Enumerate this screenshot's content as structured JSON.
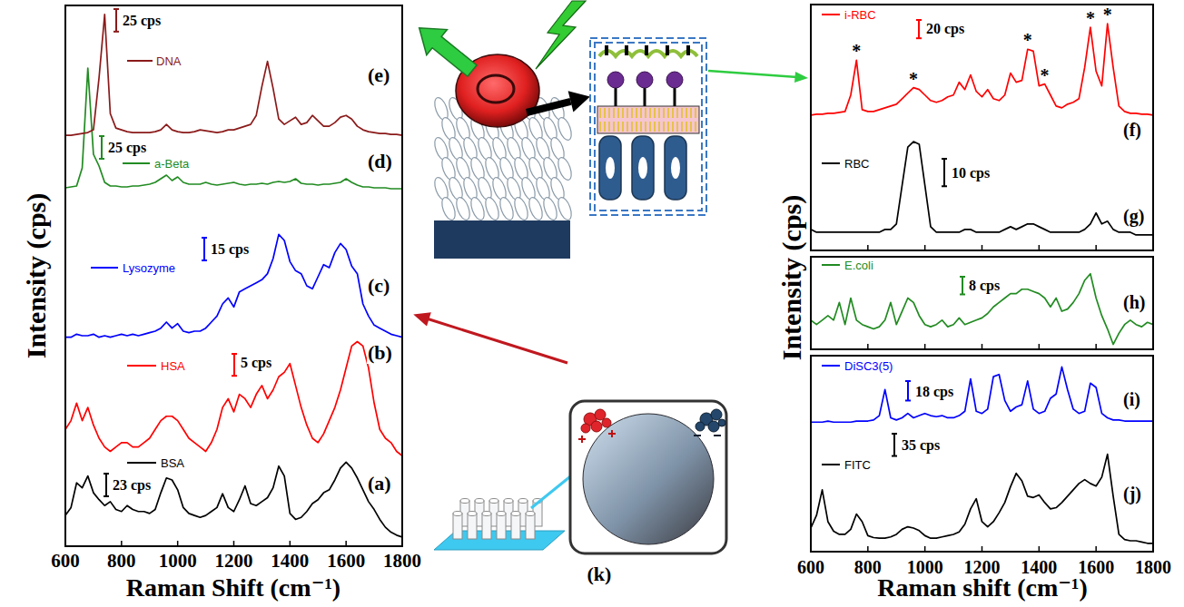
{
  "chart_data": [
    {
      "type": "line",
      "x_label": "Raman Shift (cm⁻¹)",
      "y_label": "Intensity (cps)",
      "xlim": [
        600,
        1800
      ],
      "xticks": [
        600,
        800,
        1000,
        1200,
        1400,
        1600,
        1800
      ],
      "tick_labels": "x",
      "x": [
        600,
        620,
        640,
        660,
        680,
        700,
        720,
        740,
        760,
        780,
        800,
        820,
        840,
        860,
        880,
        900,
        920,
        940,
        960,
        980,
        1000,
        1020,
        1040,
        1060,
        1080,
        1100,
        1120,
        1140,
        1160,
        1180,
        1200,
        1220,
        1240,
        1260,
        1280,
        1300,
        1320,
        1340,
        1360,
        1380,
        1400,
        1420,
        1440,
        1460,
        1480,
        1500,
        1520,
        1540,
        1560,
        1580,
        1600,
        1620,
        1640,
        1660,
        1680,
        1700,
        1720,
        1740,
        1760,
        1780,
        1800
      ],
      "panels": [
        {
          "series": [
            {
              "name": "BSA",
              "label": "(a)",
              "color": "#000000",
              "ylim": [
                0,
                92
              ],
              "scale_bar": {
                "value": 23,
                "label": "23 cps"
              },
              "values": [
                22,
                30,
                55,
                50,
                62,
                45,
                38,
                32,
                36,
                28,
                26,
                32,
                28,
                26,
                26,
                24,
                28,
                45,
                60,
                58,
                48,
                30,
                24,
                22,
                20,
                22,
                26,
                30,
                44,
                30,
                26,
                38,
                52,
                34,
                32,
                36,
                40,
                50,
                72,
                62,
                24,
                18,
                20,
                26,
                34,
                38,
                45,
                48,
                58,
                70,
                76,
                70,
                60,
                48,
                36,
                28,
                18,
                10,
                5,
                2,
                0
              ]
            },
            {
              "name": "HSA",
              "label": "(b)",
              "color": "#ff0000",
              "ylim": [
                0,
                31
              ],
              "scale_bar": {
                "value": 5,
                "label": "5 cps"
              },
              "values": [
                8,
                10,
                14,
                10,
                13,
                9,
                6,
                4,
                3,
                4,
                5,
                5,
                4,
                4,
                5,
                6,
                8,
                10,
                11,
                11,
                10,
                8,
                6,
                5,
                4,
                3,
                5,
                8,
                13,
                15,
                12,
                16,
                15,
                13,
                16,
                18,
                15,
                17,
                20,
                21,
                23,
                18,
                13,
                9,
                6,
                5,
                7,
                10,
                13,
                17,
                22,
                27,
                28,
                27,
                22,
                14,
                8,
                6,
                5,
                3,
                2
              ]
            },
            {
              "name": "Lysozyme",
              "label": "(c)",
              "color": "#0000ff",
              "ylim": [
                0,
                90
              ],
              "scale_bar": {
                "value": 15,
                "label": "15 cps"
              },
              "values": [
                8,
                8,
                10,
                9,
                9,
                10,
                8,
                9,
                8,
                9,
                10,
                9,
                10,
                9,
                10,
                11,
                12,
                14,
                18,
                14,
                17,
                12,
                11,
                12,
                12,
                14,
                18,
                22,
                30,
                34,
                28,
                38,
                40,
                42,
                44,
                46,
                50,
                60,
                76,
                72,
                58,
                52,
                50,
                42,
                40,
                48,
                56,
                54,
                64,
                70,
                66,
                55,
                50,
                30,
                22,
                16,
                14,
                12,
                10,
                9,
                8
              ]
            },
            {
              "name": "a-Beta",
              "label": "(d)",
              "color": "#228b22",
              "ylim": [
                0,
                150
              ],
              "scale_bar": {
                "value": 25,
                "label": "25 cps"
              },
              "values": [
                8,
                9,
                10,
                30,
                140,
                45,
                32,
                14,
                10,
                10,
                9,
                9,
                10,
                10,
                11,
                12,
                14,
                18,
                22,
                16,
                20,
                14,
                12,
                12,
                12,
                14,
                12,
                11,
                12,
                13,
                14,
                12,
                11,
                12,
                12,
                13,
                12,
                14,
                15,
                14,
                15,
                18,
                13,
                12,
                12,
                11,
                12,
                12,
                13,
                14,
                18,
                14,
                11,
                9,
                9,
                8,
                8,
                8,
                7,
                7,
                7
              ]
            },
            {
              "name": "DNA",
              "label": "(e)",
              "color": "#8b1a1a",
              "ylim": [
                0,
                150
              ],
              "scale_bar": {
                "value": 25,
                "label": "25 cps"
              },
              "values": [
                6,
                6,
                7,
                8,
                9,
                12,
                70,
                140,
                30,
                14,
                12,
                10,
                9,
                9,
                9,
                9,
                10,
                12,
                18,
                12,
                10,
                9,
                9,
                10,
                12,
                11,
                10,
                9,
                10,
                12,
                12,
                14,
                16,
                18,
                28,
                60,
                88,
                58,
                24,
                18,
                22,
                26,
                18,
                20,
                28,
                22,
                16,
                16,
                20,
                26,
                28,
                24,
                16,
                12,
                10,
                9,
                8,
                8,
                7,
                7,
                6
              ]
            }
          ]
        }
      ]
    },
    {
      "type": "line",
      "x_label": "Raman shift (cm⁻¹)",
      "y_label": "Intensity (cps)",
      "xlim": [
        600,
        1800
      ],
      "xticks": [
        600,
        800,
        1000,
        1200,
        1400,
        1600,
        1800
      ],
      "tick_labels": "x",
      "x": [
        600,
        620,
        640,
        660,
        680,
        700,
        720,
        740,
        760,
        780,
        800,
        820,
        840,
        860,
        880,
        900,
        920,
        940,
        960,
        980,
        1000,
        1020,
        1040,
        1060,
        1080,
        1100,
        1120,
        1140,
        1160,
        1180,
        1200,
        1220,
        1240,
        1260,
        1280,
        1300,
        1320,
        1340,
        1360,
        1380,
        1400,
        1420,
        1440,
        1460,
        1480,
        1500,
        1520,
        1540,
        1560,
        1580,
        1600,
        1620,
        1640,
        1660,
        1680,
        1700,
        1720,
        1740,
        1760,
        1780,
        1800
      ],
      "panels": [
        {
          "series": [
            {
              "name": "i-RBC",
              "label": "(f)",
              "color": "#ff0000",
              "ylim": [
                0,
                114
              ],
              "scale_bar": {
                "value": 20,
                "label": "20 cps"
              },
              "annotations": [
                {
                  "x": 760,
                  "label": "*"
                },
                {
                  "x": 960,
                  "label": "*"
                },
                {
                  "x": 1360,
                  "label": "*"
                },
                {
                  "x": 1420,
                  "label": "*"
                },
                {
                  "x": 1580,
                  "label": "*"
                },
                {
                  "x": 1640,
                  "label": "*"
                }
              ],
              "values": [
                8,
                9,
                9,
                10,
                10,
                11,
                12,
                30,
                68,
                14,
                12,
                12,
                14,
                16,
                18,
                20,
                26,
                32,
                38,
                36,
                30,
                24,
                22,
                24,
                28,
                30,
                44,
                36,
                52,
                34,
                28,
                36,
                26,
                24,
                30,
                54,
                44,
                46,
                80,
                78,
                40,
                42,
                30,
                18,
                16,
                20,
                22,
                26,
                60,
                104,
                56,
                40,
                108,
                60,
                18,
                12,
                10,
                10,
                9,
                9,
                8
              ]
            },
            {
              "name": "RBC",
              "label": "(g)",
              "color": "#000000",
              "ylim": [
                0,
                38
              ],
              "scale_bar": {
                "value": 10,
                "label": "10 cps"
              },
              "values": [
                4,
                3,
                3,
                3,
                3,
                3,
                3,
                3,
                3,
                3,
                3,
                3,
                3,
                4,
                4,
                6,
                20,
                34,
                36,
                35,
                20,
                5,
                3,
                3,
                3,
                3,
                3,
                4,
                4,
                3,
                3,
                3,
                3,
                3,
                4,
                5,
                4,
                5,
                6,
                6,
                5,
                4,
                3,
                3,
                3,
                3,
                3,
                3,
                4,
                6,
                10,
                6,
                7,
                4,
                3,
                3,
                3,
                2,
                2,
                2,
                2
              ]
            }
          ]
        },
        {
          "series": [
            {
              "name": "E.coli",
              "label": "(h)",
              "color": "#228b22",
              "ylim": [
                0,
                37
              ],
              "scale_bar": {
                "value": 8,
                "label": "8 cps"
              },
              "values": [
                12,
                10,
                12,
                14,
                12,
                20,
                10,
                22,
                12,
                10,
                9,
                8,
                9,
                12,
                20,
                10,
                16,
                22,
                20,
                14,
                10,
                9,
                10,
                12,
                9,
                10,
                13,
                10,
                11,
                12,
                13,
                15,
                18,
                20,
                22,
                24,
                24,
                26,
                26,
                25,
                24,
                22,
                18,
                22,
                16,
                17,
                20,
                24,
                30,
                33,
                22,
                14,
                8,
                1,
                6,
                10,
                12,
                10,
                9,
                11,
                10
              ]
            }
          ]
        },
        {
          "series": [
            {
              "name": "DiSC3(5)",
              "label": "(i)",
              "color": "#0000ff",
              "ylim": [
                0,
                57
              ],
              "scale_bar": {
                "value": 18,
                "label": "18 cps"
              },
              "values": [
                4,
                4,
                4,
                5,
                4,
                4,
                4,
                4,
                5,
                5,
                5,
                6,
                10,
                34,
                8,
                6,
                8,
                12,
                8,
                10,
                12,
                10,
                9,
                10,
                8,
                8,
                10,
                14,
                44,
                14,
                12,
                16,
                46,
                48,
                24,
                14,
                18,
                20,
                42,
                16,
                12,
                14,
                26,
                30,
                55,
                34,
                16,
                12,
                14,
                40,
                36,
                12,
                8,
                6,
                6,
                5,
                5,
                5,
                5,
                5,
                5
              ]
            },
            {
              "name": "FITC",
              "label": "(j)",
              "color": "#000000",
              "ylim": [
                0,
                154
              ],
              "scale_bar": {
                "value": 35,
                "label": "35 cps"
              },
              "values": [
                30,
                50,
                90,
                40,
                25,
                20,
                20,
                28,
                52,
                40,
                18,
                15,
                14,
                14,
                16,
                20,
                28,
                32,
                30,
                26,
                18,
                14,
                14,
                16,
                18,
                20,
                24,
                36,
                60,
                76,
                40,
                32,
                40,
                54,
                70,
                95,
                116,
                104,
                80,
                78,
                82,
                70,
                60,
                62,
                70,
                80,
                90,
                100,
                106,
                100,
                96,
                110,
                146,
                80,
                20,
                12,
                10,
                10,
                8,
                6,
                6
              ]
            }
          ]
        }
      ]
    }
  ],
  "diagram": {
    "label": "(k)"
  }
}
